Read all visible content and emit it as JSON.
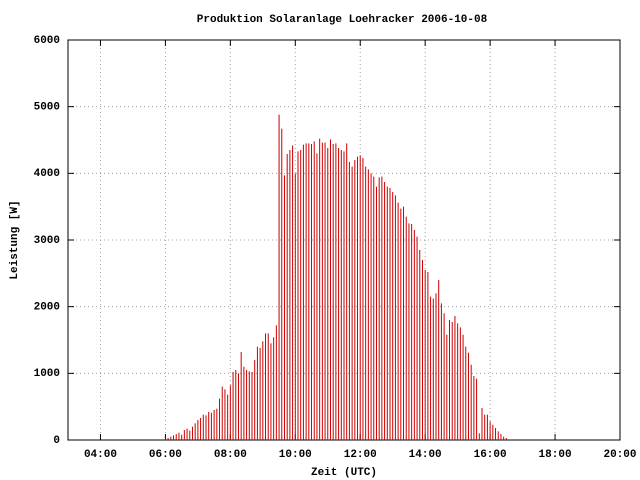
{
  "chart_data": {
    "type": "impulse",
    "title": "Produktion Solaranlage Loehracker 2006-10-08",
    "x_label": "Zeit (UTC)",
    "y_label": "Leistung [W]",
    "color": "#cc0000",
    "grid": true,
    "xlim": [
      "03:00",
      "20:00"
    ],
    "xticks": [
      "04:00",
      "06:00",
      "08:00",
      "10:00",
      "12:00",
      "14:00",
      "16:00",
      "18:00",
      "20:00"
    ],
    "ylim": [
      0,
      6000
    ],
    "yticks": [
      0,
      1000,
      2000,
      3000,
      4000,
      5000,
      6000
    ],
    "x": [
      "05:55",
      "06:00",
      "06:05",
      "06:10",
      "06:15",
      "06:20",
      "06:25",
      "06:30",
      "06:35",
      "06:40",
      "06:45",
      "06:50",
      "06:55",
      "07:00",
      "07:05",
      "07:10",
      "07:15",
      "07:20",
      "07:25",
      "07:30",
      "07:35",
      "07:40",
      "07:45",
      "07:50",
      "07:55",
      "08:00",
      "08:05",
      "08:10",
      "08:15",
      "08:20",
      "08:25",
      "08:30",
      "08:35",
      "08:40",
      "08:45",
      "08:50",
      "08:55",
      "09:00",
      "09:05",
      "09:10",
      "09:15",
      "09:20",
      "09:25",
      "09:30",
      "09:35",
      "09:40",
      "09:45",
      "09:50",
      "09:55",
      "10:00",
      "10:05",
      "10:10",
      "10:15",
      "10:20",
      "10:25",
      "10:30",
      "10:35",
      "10:40",
      "10:45",
      "10:50",
      "10:55",
      "11:00",
      "11:05",
      "11:10",
      "11:15",
      "11:20",
      "11:25",
      "11:30",
      "11:35",
      "11:40",
      "11:45",
      "11:50",
      "11:55",
      "12:00",
      "12:05",
      "12:10",
      "12:15",
      "12:20",
      "12:25",
      "12:30",
      "12:35",
      "12:40",
      "12:45",
      "12:50",
      "12:55",
      "13:00",
      "13:05",
      "13:10",
      "13:15",
      "13:20",
      "13:25",
      "13:30",
      "13:35",
      "13:40",
      "13:45",
      "13:50",
      "13:55",
      "14:00",
      "14:05",
      "14:10",
      "14:15",
      "14:20",
      "14:25",
      "14:30",
      "14:35",
      "14:40",
      "14:45",
      "14:50",
      "14:55",
      "15:00",
      "15:05",
      "15:10",
      "15:15",
      "15:20",
      "15:25",
      "15:30",
      "15:35",
      "15:40",
      "15:45",
      "15:50",
      "15:55",
      "16:00",
      "16:05",
      "16:10",
      "16:15",
      "16:20",
      "16:25",
      "16:30",
      "16:35"
    ],
    "values": [
      10,
      20,
      30,
      50,
      70,
      90,
      110,
      80,
      150,
      170,
      140,
      200,
      250,
      300,
      330,
      380,
      370,
      420,
      410,
      450,
      470,
      620,
      800,
      760,
      680,
      820,
      1020,
      1050,
      1000,
      1320,
      1100,
      1050,
      1030,
      1020,
      1200,
      1400,
      1380,
      1480,
      1600,
      1600,
      1450,
      1540,
      1720,
      4880,
      4670,
      3970,
      4290,
      4350,
      4420,
      4000,
      4330,
      4350,
      4430,
      4450,
      4450,
      4440,
      4480,
      4300,
      4520,
      4460,
      4460,
      4380,
      4510,
      4440,
      4450,
      4380,
      4350,
      4330,
      4450,
      4170,
      4100,
      4200,
      4250,
      4270,
      4230,
      4100,
      4060,
      4000,
      3950,
      3800,
      3940,
      3950,
      3870,
      3800,
      3780,
      3720,
      3670,
      3560,
      3470,
      3500,
      3350,
      3250,
      3240,
      3150,
      3050,
      2850,
      2700,
      2550,
      2520,
      2150,
      2120,
      2200,
      2400,
      2050,
      1900,
      1580,
      1800,
      1770,
      1860,
      1750,
      1690,
      1580,
      1400,
      1310,
      1130,
      960,
      920,
      100,
      480,
      380,
      380,
      280,
      230,
      180,
      130,
      90,
      50,
      30,
      10
    ]
  }
}
